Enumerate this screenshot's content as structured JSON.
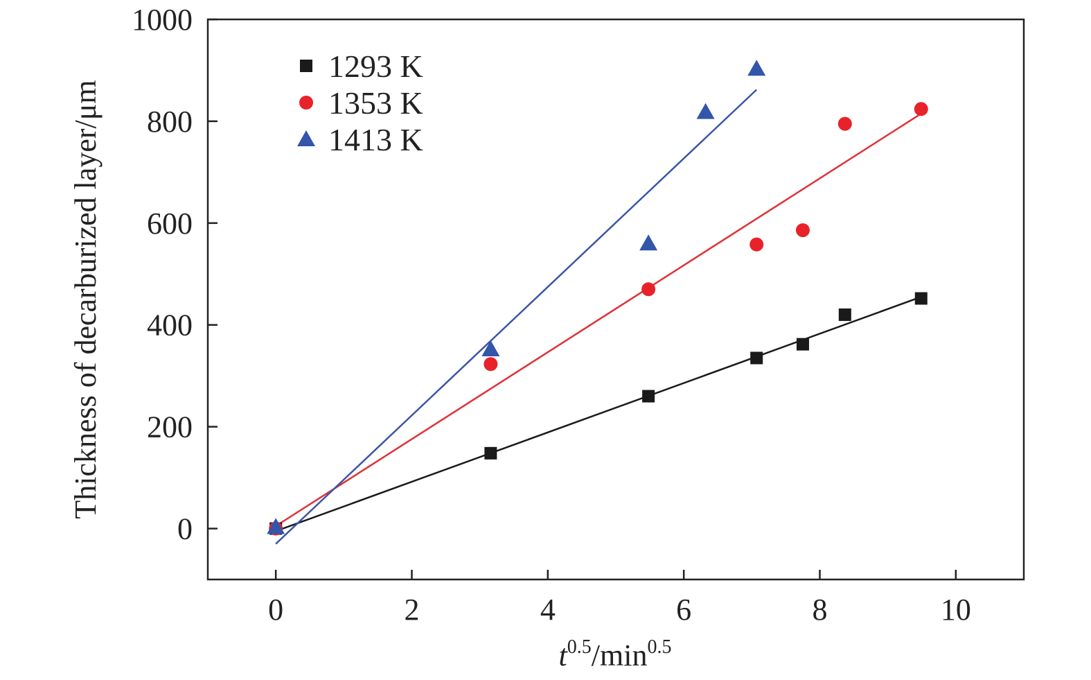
{
  "chart_data": {
    "type": "scatter",
    "title": "",
    "xlabel": {
      "base": "t",
      "sup1": "0.5",
      "mid": "/min",
      "sup2": "0.5"
    },
    "ylabel": "Thickness of  decarburized layer/μm",
    "xlim": [
      -1,
      11
    ],
    "ylim": [
      -100,
      1000
    ],
    "xticks": [
      0,
      2,
      4,
      6,
      8,
      10
    ],
    "yticks": [
      0,
      200,
      400,
      600,
      800,
      1000
    ],
    "xtick_labels": [
      "0",
      "2",
      "4",
      "6",
      "8",
      "10"
    ],
    "ytick_labels": [
      "0",
      "200",
      "400",
      "600",
      "800",
      "1000"
    ],
    "grid": false,
    "legend_position": "top-left",
    "series": [
      {
        "name": "1293 K",
        "marker": "square",
        "color": "#1a1a1a",
        "line_color": "#1a1a1a",
        "points": [
          [
            0,
            0
          ],
          [
            3.16,
            148
          ],
          [
            5.48,
            260
          ],
          [
            7.07,
            335
          ],
          [
            7.75,
            362
          ],
          [
            8.37,
            420
          ],
          [
            9.49,
            452
          ]
        ],
        "fit": [
          [
            0,
            -5
          ],
          [
            9.49,
            455
          ]
        ]
      },
      {
        "name": "1353 K",
        "marker": "circle",
        "color": "#e8222a",
        "line_color": "#e03038",
        "points": [
          [
            0,
            0
          ],
          [
            3.16,
            323
          ],
          [
            5.48,
            470
          ],
          [
            7.07,
            558
          ],
          [
            7.75,
            586
          ],
          [
            8.37,
            795
          ],
          [
            9.49,
            824
          ]
        ],
        "fit": [
          [
            0,
            5
          ],
          [
            9.49,
            815
          ]
        ]
      },
      {
        "name": "1413 K",
        "marker": "triangle",
        "color": "#3355aa",
        "line_color": "#3a55a8",
        "points": [
          [
            0,
            3
          ],
          [
            3.16,
            352
          ],
          [
            5.48,
            560
          ],
          [
            6.32,
            818
          ],
          [
            7.07,
            903
          ]
        ],
        "fit": [
          [
            0,
            -30
          ],
          [
            7.07,
            862
          ]
        ]
      }
    ]
  }
}
